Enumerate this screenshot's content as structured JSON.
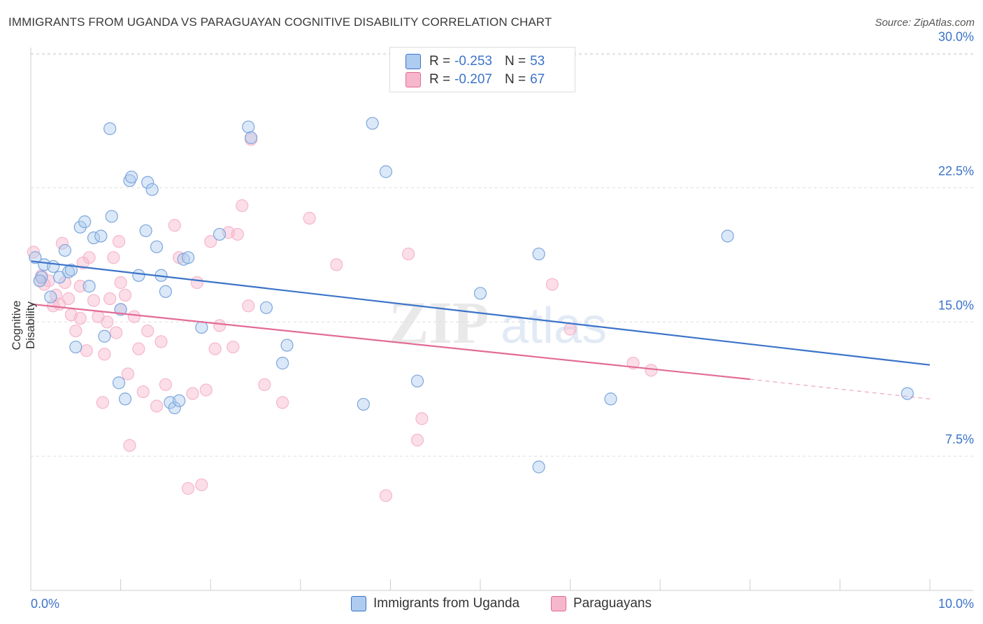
{
  "title": "IMMIGRANTS FROM UGANDA VS PARAGUAYAN COGNITIVE DISABILITY CORRELATION CHART",
  "source": "Source: ZipAtlas.com",
  "watermark": "ZIPatlas",
  "legend": {
    "series1": {
      "r_label": "R =",
      "r_value": "-0.253",
      "n_label": "N =",
      "n_value": "53"
    },
    "series2": {
      "r_label": "R =",
      "r_value": "-0.207",
      "n_label": "N =",
      "n_value": "67"
    }
  },
  "bottom_legend": {
    "series1": "Immigrants from Uganda",
    "series2": "Paraguayans"
  },
  "colors": {
    "blue": "#3b73c9",
    "blue_fill": "#aecbf0",
    "pink": "#e26b97",
    "pink_fill": "#f6b6cc",
    "grid": "#dddddd"
  },
  "chart_data": {
    "type": "scatter",
    "ylabel": "Cognitive Disability",
    "xlabel": "",
    "xlim": [
      0,
      10
    ],
    "ylim": [
      0,
      31
    ],
    "x_ticks": [
      "0.0%",
      "10.0%"
    ],
    "y_ticks": [
      {
        "value": 7.5,
        "label": "7.5%"
      },
      {
        "value": 15.0,
        "label": "15.0%"
      },
      {
        "value": 22.5,
        "label": "22.5%"
      },
      {
        "value": 30.0,
        "label": "30.0%"
      }
    ],
    "grid": true,
    "series": [
      {
        "name": "Immigrants from Uganda",
        "color": "#3b73c9",
        "trend": {
          "x0": 0.0,
          "y0": 18.4,
          "x1": 10.0,
          "y1": 12.6
        },
        "points": [
          [
            0.05,
            18.6
          ],
          [
            0.12,
            17.5
          ],
          [
            0.15,
            18.2
          ],
          [
            0.22,
            16.4
          ],
          [
            0.25,
            18.1
          ],
          [
            0.32,
            17.5
          ],
          [
            0.38,
            19.0
          ],
          [
            0.42,
            17.8
          ],
          [
            0.45,
            17.9
          ],
          [
            0.5,
            13.6
          ],
          [
            0.55,
            20.3
          ],
          [
            0.6,
            20.6
          ],
          [
            0.65,
            17.0
          ],
          [
            0.7,
            19.7
          ],
          [
            0.78,
            19.8
          ],
          [
            0.82,
            14.2
          ],
          [
            0.88,
            25.8
          ],
          [
            0.9,
            20.9
          ],
          [
            0.98,
            11.6
          ],
          [
            1.0,
            15.7
          ],
          [
            1.05,
            10.7
          ],
          [
            1.1,
            22.9
          ],
          [
            1.12,
            23.1
          ],
          [
            1.2,
            17.6
          ],
          [
            1.28,
            20.1
          ],
          [
            1.3,
            22.8
          ],
          [
            1.35,
            22.4
          ],
          [
            1.4,
            19.2
          ],
          [
            1.45,
            17.6
          ],
          [
            1.5,
            16.7
          ],
          [
            1.55,
            10.5
          ],
          [
            1.6,
            10.2
          ],
          [
            1.65,
            10.6
          ],
          [
            1.7,
            18.5
          ],
          [
            1.75,
            18.6
          ],
          [
            1.9,
            14.7
          ],
          [
            2.1,
            19.9
          ],
          [
            2.42,
            25.9
          ],
          [
            2.45,
            25.3
          ],
          [
            2.62,
            15.8
          ],
          [
            2.8,
            12.7
          ],
          [
            2.85,
            13.7
          ],
          [
            3.7,
            10.4
          ],
          [
            3.8,
            26.1
          ],
          [
            3.95,
            23.4
          ],
          [
            4.3,
            11.7
          ],
          [
            5.0,
            16.6
          ],
          [
            5.65,
            18.8
          ],
          [
            5.65,
            6.9
          ],
          [
            6.45,
            10.7
          ],
          [
            7.75,
            19.8
          ],
          [
            9.75,
            11.0
          ],
          [
            0.1,
            17.3
          ]
        ]
      },
      {
        "name": "Paraguayans",
        "color": "#e26b97",
        "trend": {
          "x0": 0.0,
          "y0": 16.0,
          "x1": 8.0,
          "y1": 11.8,
          "x_dash_end": 10.0,
          "y_dash_end": 10.7
        },
        "points": [
          [
            0.03,
            18.9
          ],
          [
            0.1,
            17.3
          ],
          [
            0.15,
            17.1
          ],
          [
            0.2,
            17.3
          ],
          [
            0.25,
            15.9
          ],
          [
            0.28,
            16.5
          ],
          [
            0.32,
            16.0
          ],
          [
            0.35,
            19.4
          ],
          [
            0.38,
            17.2
          ],
          [
            0.42,
            16.3
          ],
          [
            0.45,
            15.4
          ],
          [
            0.5,
            14.5
          ],
          [
            0.55,
            15.2
          ],
          [
            0.58,
            18.3
          ],
          [
            0.62,
            13.4
          ],
          [
            0.65,
            18.6
          ],
          [
            0.7,
            16.2
          ],
          [
            0.75,
            15.3
          ],
          [
            0.8,
            10.5
          ],
          [
            0.82,
            13.2
          ],
          [
            0.85,
            15.0
          ],
          [
            0.88,
            16.3
          ],
          [
            0.92,
            18.6
          ],
          [
            0.95,
            14.4
          ],
          [
            0.98,
            19.5
          ],
          [
            1.0,
            17.2
          ],
          [
            1.05,
            16.5
          ],
          [
            1.08,
            12.1
          ],
          [
            1.1,
            8.1
          ],
          [
            1.15,
            15.3
          ],
          [
            1.2,
            13.5
          ],
          [
            1.25,
            11.1
          ],
          [
            1.3,
            14.5
          ],
          [
            1.4,
            10.3
          ],
          [
            1.45,
            13.9
          ],
          [
            1.5,
            11.5
          ],
          [
            1.6,
            20.4
          ],
          [
            1.65,
            18.6
          ],
          [
            1.75,
            5.7
          ],
          [
            1.8,
            11.0
          ],
          [
            1.85,
            17.2
          ],
          [
            1.9,
            5.9
          ],
          [
            1.95,
            11.2
          ],
          [
            2.0,
            19.5
          ],
          [
            2.05,
            13.5
          ],
          [
            2.1,
            14.8
          ],
          [
            2.2,
            20.0
          ],
          [
            2.25,
            13.6
          ],
          [
            2.3,
            19.9
          ],
          [
            2.35,
            21.5
          ],
          [
            2.42,
            15.9
          ],
          [
            2.45,
            25.2
          ],
          [
            2.6,
            11.5
          ],
          [
            2.8,
            10.5
          ],
          [
            3.1,
            20.8
          ],
          [
            3.4,
            18.2
          ],
          [
            3.95,
            5.3
          ],
          [
            4.2,
            18.8
          ],
          [
            4.3,
            8.4
          ],
          [
            4.35,
            9.6
          ],
          [
            5.8,
            17.1
          ],
          [
            6.0,
            14.6
          ],
          [
            6.7,
            12.7
          ],
          [
            6.9,
            12.3
          ],
          [
            0.55,
            17.0
          ],
          [
            0.12,
            17.6
          ],
          [
            1.0,
            15.7
          ]
        ]
      }
    ]
  }
}
